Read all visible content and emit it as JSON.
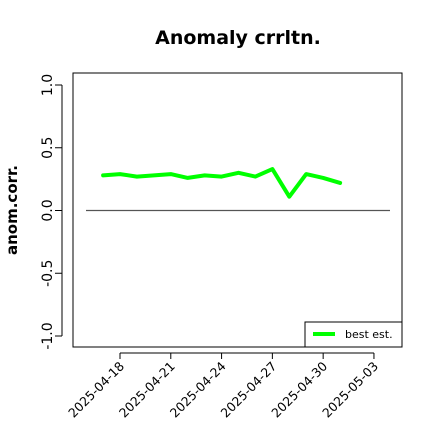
{
  "chart_data": {
    "type": "line",
    "title": "Anomaly crrltn.",
    "ylabel": "anom.corr.",
    "xlabel": "",
    "ylim": [
      -1.0,
      1.0
    ],
    "yticks": [
      "-1.0",
      "-0.5",
      "0.0",
      "0.5",
      "1.0"
    ],
    "xticks": [
      "2025-04-18",
      "2025-04-21",
      "2025-04-24",
      "2025-04-27",
      "2025-04-30",
      "2025-05-03"
    ],
    "highlighted_xtick": "2025-04-24",
    "highlight_color": "#228b22",
    "reference_line": 0.0,
    "x": [
      "2025-04-17",
      "2025-04-18",
      "2025-04-19",
      "2025-04-20",
      "2025-04-21",
      "2025-04-22",
      "2025-04-23",
      "2025-04-24",
      "2025-04-25",
      "2025-04-26",
      "2025-04-27",
      "2025-04-28",
      "2025-04-29",
      "2025-04-30",
      "2025-05-01"
    ],
    "series": [
      {
        "name": "best est.",
        "color": "#00ff00",
        "values": [
          0.28,
          0.29,
          0.27,
          0.28,
          0.29,
          0.26,
          0.28,
          0.27,
          0.3,
          0.27,
          0.33,
          0.11,
          0.29,
          0.26,
          0.22
        ]
      }
    ],
    "legend_position": "bottom-right",
    "grid": false
  }
}
